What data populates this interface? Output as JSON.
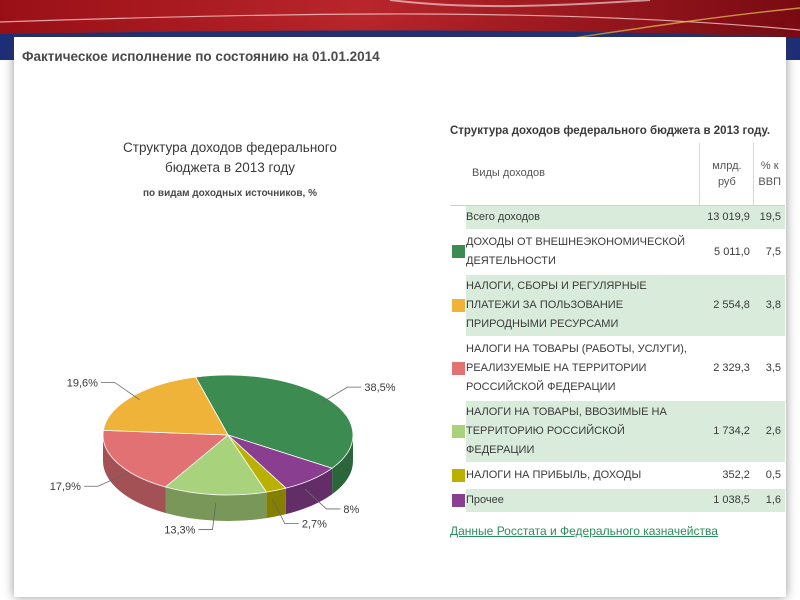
{
  "page": {
    "title": "Фактическое исполнение по состоянию на 01.01.2014"
  },
  "chart_data": {
    "type": "pie",
    "title_line1": "Структура доходов федерального",
    "title_line2": "бюджета в 2013 году",
    "subtitle": "по видам доходных источников, %",
    "slices": [
      {
        "value": 38.5,
        "label": "38,5%",
        "color": "#3c8c52"
      },
      {
        "value": 8.0,
        "label": "8%",
        "color": "#8a3e8f"
      },
      {
        "value": 2.7,
        "label": "2,7%",
        "color": "#b9b000"
      },
      {
        "value": 13.3,
        "label": "13,3%",
        "color": "#a8d27c"
      },
      {
        "value": 17.9,
        "label": "17,9%",
        "color": "#e27174"
      },
      {
        "value": 19.6,
        "label": "19,6%",
        "color": "#f0b33a"
      }
    ]
  },
  "table": {
    "title": "Структура доходов федерального бюджета в 2013 году.",
    "headers": {
      "type": "Виды доходов",
      "value_line1": "млрд.",
      "value_line2": "руб",
      "pct_line1": "% к",
      "pct_line2": "ВВП"
    },
    "rows": [
      {
        "name": "Всего доходов",
        "value": "13 019,9",
        "pct": "19,5",
        "color": ""
      },
      {
        "name": "ДОХОДЫ ОТ ВНЕШНЕЭКОНОМИЧЕСКОЙ ДЕЯТЕЛЬНОСТИ",
        "value": "5 011,0",
        "pct": "7,5",
        "color": "#3c8c52"
      },
      {
        "name": "НАЛОГИ, СБОРЫ И РЕГУЛЯРНЫЕ ПЛАТЕЖИ ЗА ПОЛЬЗОВАНИЕ ПРИРОДНЫМИ РЕСУРСАМИ",
        "value": "2 554,8",
        "pct": "3,8",
        "color": "#f0b33a"
      },
      {
        "name": "НАЛОГИ НА ТОВАРЫ (РАБОТЫ, УСЛУГИ), РЕАЛИЗУЕМЫЕ НА ТЕРРИТОРИИ РОССИЙСКОЙ ФЕДЕРАЦИИ",
        "value": "2 329,3",
        "pct": "3,5",
        "color": "#e27174"
      },
      {
        "name": "НАЛОГИ НА ТОВАРЫ, ВВОЗИМЫЕ НА ТЕРРИТОРИЮ РОССИЙСКОЙ ФЕДЕРАЦИИ",
        "value": "1 734,2",
        "pct": "2,6",
        "color": "#a8d27c"
      },
      {
        "name": "НАЛОГИ НА ПРИБЫЛЬ, ДОХОДЫ",
        "value": "352,2",
        "pct": "0,5",
        "color": "#b9b000"
      },
      {
        "name": "Прочее",
        "value": "1 038,5",
        "pct": "1,6",
        "color": "#8a3e8f"
      }
    ]
  },
  "source_link": "Данные Росстата и Федерального казначейства"
}
